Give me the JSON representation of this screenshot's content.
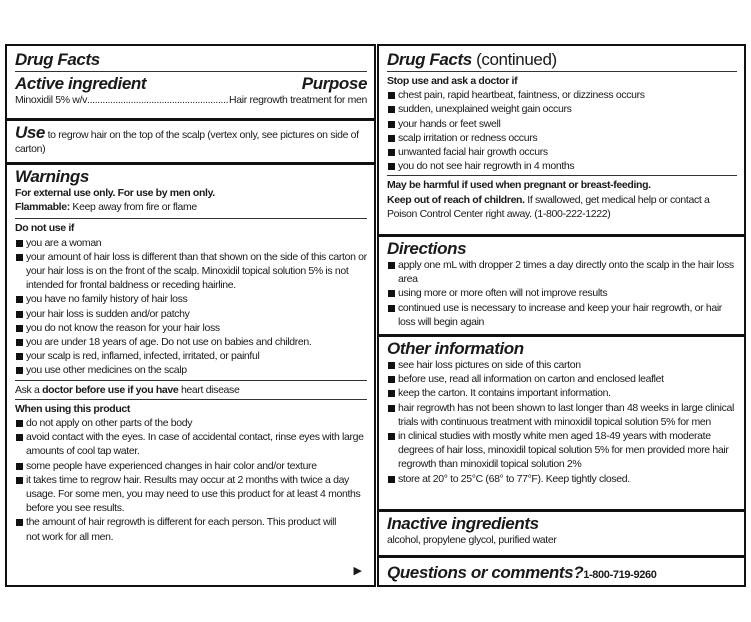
{
  "left": {
    "title": "Drug Facts",
    "active_heading": "Active ingredient",
    "purpose_heading": "Purpose",
    "active_name": "Minoxidil 5% w/v",
    "active_dots": "........................................................................",
    "active_purpose": "Hair regrowth treatment for men",
    "use_heading": "Use",
    "use_text": " to regrow hair on the top of the scalp (vertex only, see pictures on side of carton)",
    "warnings_heading": "Warnings",
    "warn_line1_a": "For external use ",
    "warn_line1_b": "only. For use by men only.",
    "warn_line2_a": "Flammable:",
    "warn_line2_b": " Keep away from fire or flame",
    "do_not_use_heading": "Do not use if",
    "do_not_use_items": [
      "you are a woman",
      "your amount of hair loss is different than that shown on the side of this carton or your hair loss is on the front of the scalp. Minoxidil topical solution 5% is not intended for frontal baldness or receding hairline.",
      "you have no family history of hair loss",
      "your hair loss is sudden and/or patchy",
      "you do not know the reason for your hair loss",
      "you are under 18 years of age. Do not use on babies and children.",
      "your scalp is red, inflamed, infected, irritated, or painful",
      "you use other medicines on the scalp"
    ],
    "ask_doctor_a": "Ask a ",
    "ask_doctor_b": "doctor before use if you have",
    "ask_doctor_c": " heart disease",
    "when_using_heading": "When using this product",
    "when_using_items": [
      "do not apply on other parts of the body",
      "avoid contact with the eyes. In case of accidental contact, rinse eyes with large amounts of cool tap water.",
      "some people have experienced changes in hair color and/or texture",
      "it takes time to regrow hair. Results may occur at 2 months with twice a day usage. For some men, you may need to use this product for at least 4 months before you see results.",
      "the amount of hair regrowth is different for each person. This product will not work for all men."
    ],
    "continue_arrow": "▶"
  },
  "right": {
    "title": "Drug Facts",
    "title_suffix": " (continued)",
    "stop_use_heading": "Stop use and ask a doctor if",
    "stop_use_items": [
      "chest pain, rapid heartbeat, faintness, or dizziness occurs",
      "sudden, unexplained weight gain occurs",
      "your hands or feet swell",
      "scalp irritation or redness occurs",
      "unwanted facial hair growth occurs",
      "you do not see hair regrowth in 4 months"
    ],
    "pregnant_text": "May be harmful if used when pregnant or breast-feeding.",
    "keep_out_bold": "Keep out of reach of children.",
    "keep_out_text": " If swallowed, get medical help or contact a Poison Control Center right away. (1-800-222-1222)",
    "directions_heading": "Directions",
    "directions_items": [
      "apply one mL with dropper 2 times a day directly onto the scalp in the hair loss area",
      "using more or more often will not improve results",
      "continued use is necessary to increase and keep your hair regrowth, or hair loss will begin again"
    ],
    "other_heading": "Other information",
    "other_items": [
      "see hair loss pictures on side of this carton",
      "before use, read all information on carton and enclosed leaflet",
      "keep the carton. It contains important information.",
      "hair regrowth has not been shown to last longer than 48 weeks in large clinical trials with continuous treatment with minoxidil topical solution 5% for men",
      "in clinical studies with mostly white men aged 18-49 years with moderate degrees of hair loss, minoxidil topical solution 5% for men provided more hair regrowth than minoxidil topical solution 2%",
      "store at 20° to 25°C (68° to 77°F). Keep tightly closed."
    ],
    "inactive_heading": "Inactive ingredients",
    "inactive_text": "alcohol, propylene glycol, purified water",
    "questions_heading": "Questions or comments?",
    "questions_phone": "1-800-719-9260"
  }
}
